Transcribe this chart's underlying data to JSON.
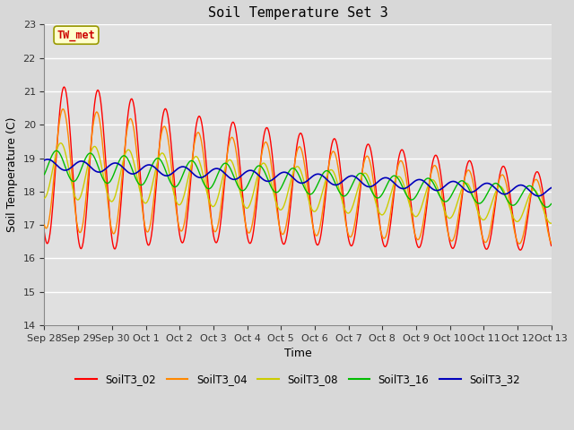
{
  "title": "Soil Temperature Set 3",
  "xlabel": "Time",
  "ylabel": "Soil Temperature (C)",
  "ylim": [
    14.0,
    23.0
  ],
  "yticks": [
    14.0,
    15.0,
    16.0,
    17.0,
    18.0,
    19.0,
    20.0,
    21.0,
    22.0,
    23.0
  ],
  "fig_bg_color": "#d8d8d8",
  "plot_bg_color": "#e0e0e0",
  "annotation_text": "TW_met",
  "annotation_bg": "#ffffcc",
  "annotation_color": "#cc0000",
  "annotation_border": "#999900",
  "series": {
    "SoilT3_02": {
      "color": "#ff0000",
      "lw": 1.0
    },
    "SoilT3_04": {
      "color": "#ff8800",
      "lw": 1.0
    },
    "SoilT3_08": {
      "color": "#cccc00",
      "lw": 1.0
    },
    "SoilT3_16": {
      "color": "#00bb00",
      "lw": 1.0
    },
    "SoilT3_32": {
      "color": "#0000bb",
      "lw": 1.2
    }
  },
  "legend_order": [
    "SoilT3_02",
    "SoilT3_04",
    "SoilT3_08",
    "SoilT3_16",
    "SoilT3_32"
  ],
  "xtick_labels": [
    "Sep 28",
    "Sep 29",
    "Sep 30",
    "Oct 1",
    "Oct 2",
    "Oct 3",
    "Oct 4",
    "Oct 5",
    "Oct 6",
    "Oct 7",
    "Oct 8",
    "Oct 9",
    "Oct 10",
    "Oct 11",
    "Oct 12",
    "Oct 13"
  ],
  "grid_color": "#ffffff",
  "grid_lw": 1.0
}
